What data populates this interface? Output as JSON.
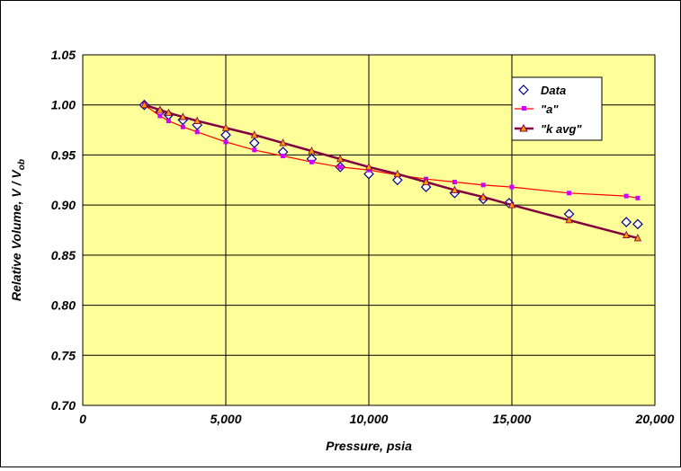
{
  "chart_data": {
    "type": "scatter",
    "xlabel": "Pressure, psia",
    "ylabel_main": "Relative Volume, V / V",
    "ylabel_sub": "ob",
    "xlim": [
      0,
      20000
    ],
    "ylim": [
      0.7,
      1.05
    ],
    "x_ticks": [
      0,
      5000,
      10000,
      15000,
      20000
    ],
    "x_tick_labels": [
      "0",
      "5,000",
      "10,000",
      "15,000",
      "20,000"
    ],
    "y_ticks": [
      0.7,
      0.75,
      0.8,
      0.85,
      0.9,
      0.95,
      1.0,
      1.05
    ],
    "y_tick_labels": [
      "0.70",
      "0.75",
      "0.80",
      "0.85",
      "0.90",
      "0.95",
      "1.00",
      "1.05"
    ],
    "grid": true,
    "plot_background": "#ffff99",
    "legend_position": "top-right",
    "series": [
      {
        "name": "Data",
        "marker": "diamond",
        "line": false,
        "color": "#000080",
        "x": [
          2150,
          2700,
          3000,
          3500,
          4000,
          5000,
          6000,
          7000,
          8000,
          9000,
          10000,
          11000,
          12000,
          13000,
          14000,
          14900,
          17000,
          19000,
          19400
        ],
        "y": [
          1.0,
          0.993,
          0.99,
          0.985,
          0.98,
          0.97,
          0.962,
          0.953,
          0.946,
          0.938,
          0.931,
          0.925,
          0.918,
          0.912,
          0.906,
          0.902,
          0.891,
          0.883,
          0.881
        ]
      },
      {
        "name": "\"a\"",
        "marker": "square",
        "line": true,
        "color": "#ff0000",
        "marker_color": "#cc00ff",
        "x": [
          2150,
          2700,
          3000,
          3500,
          4000,
          5000,
          6000,
          7000,
          8000,
          9000,
          10000,
          11000,
          12000,
          13000,
          14000,
          15000,
          17000,
          19000,
          19400
        ],
        "y": [
          1.0,
          0.989,
          0.984,
          0.978,
          0.973,
          0.963,
          0.955,
          0.949,
          0.943,
          0.938,
          0.935,
          0.93,
          0.926,
          0.923,
          0.92,
          0.918,
          0.912,
          0.909,
          0.907
        ]
      },
      {
        "name": "\"k avg\"",
        "marker": "triangle",
        "line": true,
        "color": "#800040",
        "marker_color": "#ff9900",
        "x": [
          2150,
          2700,
          3000,
          3500,
          4000,
          5000,
          6000,
          7000,
          8000,
          9000,
          10000,
          11000,
          12000,
          13000,
          14000,
          15000,
          17000,
          19000,
          19400
        ],
        "y": [
          1.0,
          0.995,
          0.992,
          0.988,
          0.984,
          0.977,
          0.97,
          0.962,
          0.954,
          0.946,
          0.938,
          0.931,
          0.923,
          0.915,
          0.908,
          0.9,
          0.885,
          0.87,
          0.867
        ]
      }
    ]
  }
}
